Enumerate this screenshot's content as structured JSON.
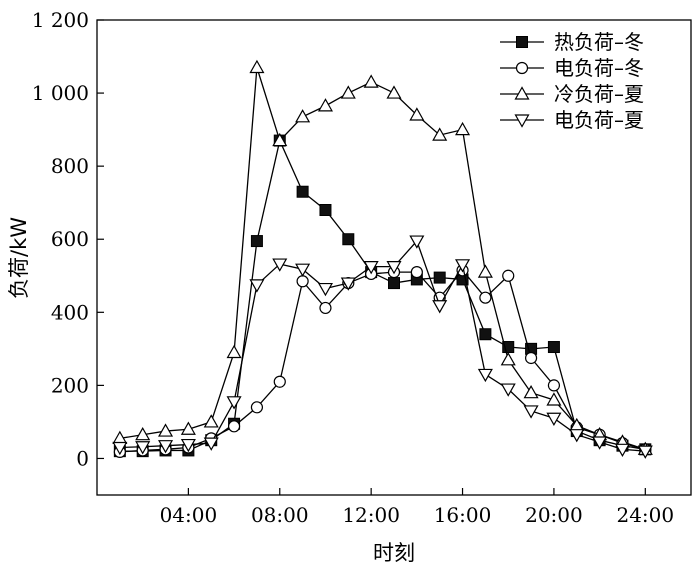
{
  "chart_data": {
    "type": "line",
    "xlabel": "时刻",
    "ylabel": "负荷/kW",
    "xlim": [
      0,
      26
    ],
    "ylim": [
      -100,
      1200
    ],
    "x_ticks": [
      4,
      8,
      12,
      16,
      20,
      24
    ],
    "x_tick_labels": [
      "04:00",
      "08:00",
      "12:00",
      "16:00",
      "20:00",
      "24:00"
    ],
    "y_ticks": [
      0,
      200,
      400,
      600,
      800,
      1000,
      1200
    ],
    "y_tick_labels": [
      "0",
      "200",
      "400",
      "600",
      "800",
      "1 000",
      "1 200"
    ],
    "grid": false,
    "legend_position": "top-right",
    "x": [
      1,
      2,
      3,
      4,
      5,
      6,
      7,
      8,
      9,
      10,
      11,
      12,
      13,
      14,
      15,
      16,
      17,
      18,
      19,
      20,
      21,
      22,
      23,
      24
    ],
    "series": [
      {
        "name": "热负荷–冬",
        "marker": "square-filled",
        "values": [
          20,
          20,
          22,
          22,
          50,
          95,
          595,
          870,
          730,
          680,
          600,
          510,
          480,
          490,
          495,
          490,
          340,
          305,
          300,
          305,
          75,
          50,
          35,
          25
        ]
      },
      {
        "name": "电负荷–冬",
        "marker": "circle-open",
        "values": [
          18,
          22,
          25,
          30,
          55,
          88,
          140,
          210,
          485,
          412,
          480,
          505,
          510,
          510,
          440,
          515,
          440,
          500,
          275,
          200,
          85,
          65,
          42,
          25
        ]
      },
      {
        "name": "冷负荷–夏",
        "marker": "triangle-up-open",
        "values": [
          55,
          65,
          75,
          80,
          100,
          290,
          1070,
          870,
          935,
          965,
          1000,
          1030,
          1000,
          940,
          885,
          900,
          510,
          270,
          180,
          160,
          90,
          65,
          45,
          25
        ]
      },
      {
        "name": "电负荷–夏",
        "marker": "triangle-down-open",
        "values": [
          30,
          32,
          35,
          38,
          42,
          155,
          475,
          532,
          518,
          465,
          480,
          525,
          525,
          595,
          418,
          530,
          230,
          190,
          130,
          110,
          65,
          45,
          25,
          20
        ]
      }
    ]
  }
}
